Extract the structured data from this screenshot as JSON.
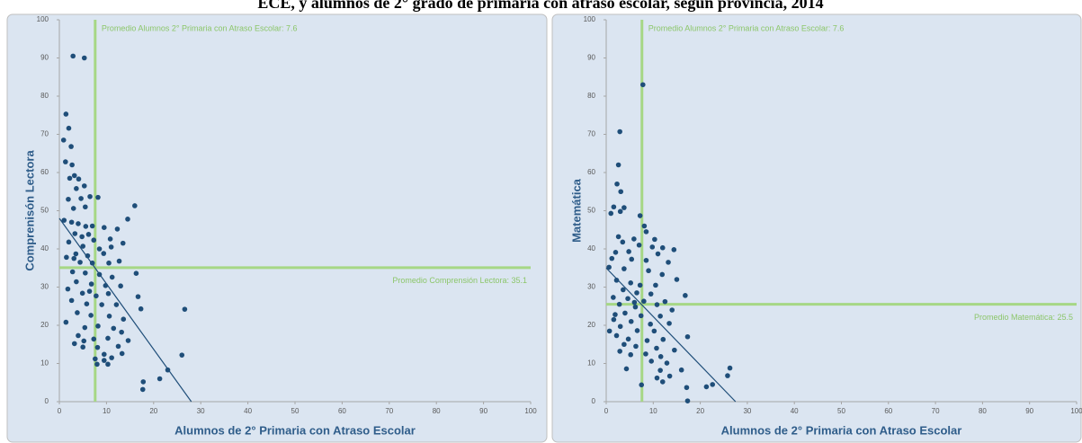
{
  "title": "ECE, y alumnos de 2° grado de primaria con atraso escolar, según provincia, 2014",
  "chart_data": [
    {
      "type": "scatter",
      "x_label": "Alumnos de 2° Primaria con Atraso Escolar",
      "y_label": "Comprenisón Lectora",
      "color": "#1f4e79",
      "ref_color": "#a6d785",
      "xlim": [
        0,
        100
      ],
      "ylim": [
        0,
        100
      ],
      "xticks": [
        0,
        10,
        20,
        30,
        40,
        50,
        60,
        70,
        80,
        90,
        100
      ],
      "yticks": [
        0,
        10,
        20,
        30,
        40,
        50,
        60,
        70,
        80,
        90,
        100
      ],
      "vline": 7.6,
      "vline_label": "Promedio Alumnos 2° Primaria con Atraso Escolar: 7.6",
      "hline": 35.1,
      "hline_label": "Promedio Comprensión Lectora: 35.1",
      "trend_line": {
        "x": [
          0,
          28
        ],
        "y": [
          48,
          0
        ]
      },
      "x": [
        2.9,
        5.3,
        1.4,
        0.9,
        2,
        2.5,
        1.3,
        2.7,
        3.2,
        2.2,
        4.1,
        5.3,
        3.6,
        1.9,
        4.6,
        6.5,
        8.2,
        3,
        5.5,
        16,
        1,
        2.6,
        4,
        5.6,
        7,
        9.5,
        12.3,
        14.5,
        3.3,
        4.8,
        6.2,
        10.8,
        2,
        5,
        8.5,
        11,
        13.5,
        3.5,
        6,
        9.4,
        1.5,
        4.4,
        7,
        10.5,
        12.7,
        16.3,
        2.8,
        5.5,
        8.5,
        11.2,
        3.6,
        6.8,
        9.8,
        13,
        1.8,
        4.9,
        7.8,
        10.4,
        16.7,
        2.6,
        5.8,
        9,
        12.1,
        17.3,
        26.6,
        3.8,
        6.7,
        10.6,
        13.6,
        1.4,
        5.4,
        8.2,
        11.5,
        13.2,
        4,
        7.3,
        10.3,
        14.6,
        3.2,
        5,
        8.1,
        12.5,
        9.5,
        7.6,
        11.1,
        13.3,
        9.5,
        8,
        10.3,
        23,
        26,
        17.8,
        17.7,
        21.3,
        5.2,
        3.1,
        6.4,
        7.3
      ],
      "values": [
        90.5,
        90,
        75.3,
        68.5,
        71.6,
        66.8,
        62.8,
        62,
        59.2,
        58.5,
        58.3,
        56.5,
        55.8,
        53,
        53.2,
        53.7,
        53.5,
        50.6,
        51,
        51.3,
        47.5,
        47,
        46.6,
        45.9,
        46,
        45.6,
        45.2,
        47.8,
        44,
        43.2,
        43.8,
        42.6,
        41.8,
        40.7,
        40,
        40.5,
        41.5,
        38.7,
        38.2,
        38.8,
        37.8,
        36.5,
        36.3,
        36.3,
        36.8,
        33.6,
        34,
        33.7,
        33.3,
        32.6,
        31.4,
        30.8,
        30.4,
        30.3,
        29.5,
        28.4,
        27.7,
        28.3,
        27.5,
        26.5,
        25.6,
        25.4,
        25.4,
        24.3,
        24.2,
        23.3,
        22.6,
        22.4,
        21.6,
        20.8,
        19.4,
        19.8,
        19.2,
        18.2,
        17.3,
        16.4,
        16.6,
        16,
        15.2,
        14.3,
        14.2,
        14.5,
        12.4,
        11.2,
        11.5,
        12.6,
        10.8,
        9.8,
        9.8,
        8.3,
        12.2,
        5.2,
        3.2,
        6,
        15.9,
        37.5,
        28.9,
        42.3
      ]
    },
    {
      "type": "scatter",
      "x_label": "Alumnos de 2° Primaria con Atraso Escolar",
      "y_label": "Matemática",
      "color": "#1f4e79",
      "ref_color": "#a6d785",
      "xlim": [
        0,
        100
      ],
      "ylim": [
        0,
        100
      ],
      "xticks": [
        0,
        10,
        20,
        30,
        40,
        50,
        60,
        70,
        80,
        90,
        100
      ],
      "yticks": [
        0,
        10,
        20,
        30,
        40,
        50,
        60,
        70,
        80,
        90,
        100
      ],
      "vline": 7.6,
      "vline_label": "Promedio Alumnos 2° Primaria con Atraso Escolar: 7.6",
      "hline": 25.5,
      "hline_label": "Promedio Matemática: 25.5",
      "trend_line": {
        "x": [
          0,
          27.5
        ],
        "y": [
          35,
          0
        ]
      },
      "x": [
        7.8,
        2.9,
        2.6,
        2.3,
        3.1,
        3.8,
        1.6,
        1,
        3,
        7.2,
        8.1,
        8.5,
        2.6,
        5.9,
        10.3,
        3.5,
        7,
        9.8,
        12,
        14.4,
        2,
        4.8,
        11,
        1.2,
        5.4,
        8.5,
        13.2,
        0.6,
        3.8,
        9,
        11.9,
        15,
        2.2,
        5.2,
        7.2,
        10.5,
        3.6,
        6.5,
        9.5,
        16.8,
        1.5,
        4.6,
        8,
        12.5,
        2.8,
        6.2,
        10.8,
        14,
        4,
        7.4,
        11.5,
        1.6,
        5.3,
        9.4,
        13.4,
        3,
        6.6,
        10.2,
        17.3,
        2.2,
        4.7,
        8.7,
        12.1,
        3.8,
        6.3,
        10.7,
        14.5,
        2.9,
        8.4,
        11.6,
        5.2,
        9.6,
        12.9,
        4.3,
        11.5,
        16,
        10.8,
        12,
        13.5,
        7.5,
        17.1,
        21.3,
        22.6,
        25.8,
        26.3,
        17.3,
        0.7,
        1.9,
        6
      ],
      "values": [
        83,
        70.7,
        62,
        57,
        55,
        50.8,
        51,
        49.3,
        49.8,
        48.7,
        46,
        44.5,
        43.2,
        42.6,
        42.5,
        41.8,
        41,
        40.5,
        40.3,
        39.8,
        39.1,
        39.3,
        38.7,
        37.5,
        37.3,
        37,
        36.5,
        35.2,
        34.8,
        34.3,
        33.3,
        32,
        31.8,
        31.1,
        30.5,
        30.5,
        29.3,
        28.5,
        28.2,
        27.8,
        27.3,
        27,
        26.3,
        26.2,
        25.5,
        24.8,
        25.4,
        24,
        23.2,
        22.5,
        22.4,
        21.5,
        21,
        20.3,
        20.5,
        19.7,
        18.6,
        18.5,
        17,
        17.3,
        16.4,
        16,
        16.3,
        15,
        14.5,
        14,
        13.5,
        13.2,
        12.5,
        11.8,
        12.3,
        10.6,
        10.1,
        8.6,
        8.2,
        8.3,
        6.2,
        5.2,
        6.7,
        4.4,
        3.7,
        3.9,
        4.5,
        6.8,
        8.8,
        0.2,
        18.5,
        22.8,
        26
      ]
    }
  ]
}
